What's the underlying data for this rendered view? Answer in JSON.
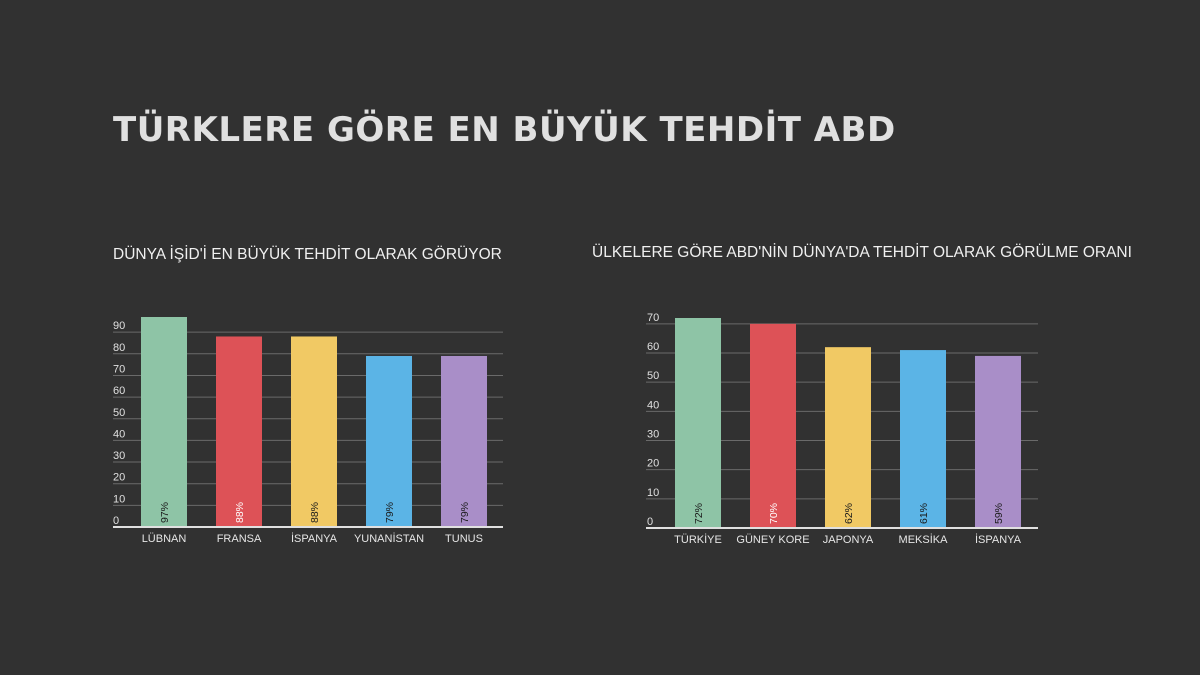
{
  "title": "TÜRKLERE GÖRE EN BÜYÜK TEHDİT ABD",
  "colors": {
    "background": "#313131",
    "green": "#8ec4a6",
    "red": "#dd5257",
    "yellow": "#f1c964",
    "blue": "#5bb4e6",
    "purple": "#a98ec8"
  },
  "chart_data": [
    {
      "type": "bar",
      "title": "DÜNYA İŞİD'İ EN BÜYÜK TEHDİT OLARAK GÖRÜYOR",
      "categories": [
        "LÜBNAN",
        "FRANSA",
        "İSPANYA",
        "YUNANİSTAN",
        "TUNUS"
      ],
      "values": [
        97,
        88,
        88,
        79,
        79
      ],
      "data_labels": [
        "97%",
        "88%",
        "88%",
        "79%",
        "79%"
      ],
      "bar_colors": [
        "#8ec4a6",
        "#dd5257",
        "#f1c964",
        "#5bb4e6",
        "#a98ec8"
      ],
      "label_colors": [
        "#1a1a1a",
        "#ffffff",
        "#1a1a1a",
        "#1a1a1a",
        "#1a1a1a"
      ],
      "yticks": [
        0,
        10,
        20,
        30,
        40,
        50,
        60,
        70,
        80,
        90
      ],
      "ylim": [
        0,
        97
      ],
      "grid": true
    },
    {
      "type": "bar",
      "title": "ÜLKELERE GÖRE ABD'NİN DÜNYA'DA TEHDİT OLARAK GÖRÜLME ORANI",
      "categories": [
        "TÜRKİYE",
        "GÜNEY KORE",
        "JAPONYA",
        "MEKSİKA",
        "İSPANYA"
      ],
      "values": [
        72,
        70,
        62,
        61,
        59
      ],
      "data_labels": [
        "72%",
        "70%",
        "62%",
        "61%",
        "59%"
      ],
      "bar_colors": [
        "#8ec4a6",
        "#dd5257",
        "#f1c964",
        "#5bb4e6",
        "#a98ec8"
      ],
      "label_colors": [
        "#1a1a1a",
        "#ffffff",
        "#1a1a1a",
        "#1a1a1a",
        "#1a1a1a"
      ],
      "yticks": [
        0,
        10,
        20,
        30,
        40,
        50,
        60,
        70
      ],
      "ylim": [
        0,
        72
      ],
      "grid": true
    }
  ]
}
